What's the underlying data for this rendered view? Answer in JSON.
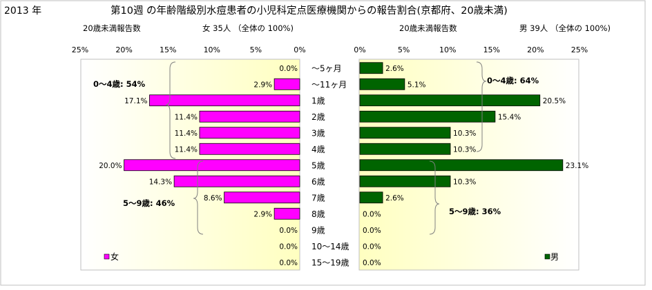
{
  "header": {
    "year": "2013 年",
    "title": "第10週 の年齢階級別水痘患者の小児科定点医療機関からの報告割合(京都府、20歳未満)"
  },
  "chart_data": [
    {
      "type": "bar",
      "orientation": "horizontal",
      "direction": "right-to-left",
      "subtitle_left": "20歳未満報告数",
      "subtitle_right": "女  35人 （全体の  100%)",
      "x_ticks": [
        "25%",
        "20%",
        "15%",
        "10%",
        "5%",
        "0%"
      ],
      "xlim": [
        0,
        25
      ],
      "legend": "女",
      "legend_position": "bottom-left",
      "color": "#ff00ff",
      "categories": [
        "～5ヶ月",
        "～11ヶ月",
        "1歳",
        "2歳",
        "3歳",
        "4歳",
        "5歳",
        "6歳",
        "7歳",
        "8歳",
        "9歳",
        "10～14歳",
        "15～19歳"
      ],
      "values": [
        0.0,
        2.9,
        17.1,
        11.4,
        11.4,
        11.4,
        20.0,
        14.3,
        8.6,
        2.9,
        0.0,
        0.0,
        0.0
      ],
      "labels": [
        "0.0%",
        "2.9%",
        "17.1%",
        "11.4%",
        "11.4%",
        "11.4%",
        "20.0%",
        "14.3%",
        "8.6%",
        "2.9%",
        "0.0%",
        "0.0%",
        "0.0%"
      ],
      "annotations": [
        "0～4歳: 54%",
        "5～9歳: 46%"
      ]
    },
    {
      "type": "bar",
      "orientation": "horizontal",
      "direction": "left-to-right",
      "subtitle_left": "20歳未満報告数",
      "subtitle_right": "男  39人 （全体の  100%)",
      "x_ticks": [
        "0%",
        "5%",
        "10%",
        "15%",
        "20%",
        "25%"
      ],
      "xlim": [
        0,
        25
      ],
      "legend": "男",
      "legend_position": "bottom-right",
      "color": "#006400",
      "categories": [
        "～5ヶ月",
        "～11ヶ月",
        "1歳",
        "2歳",
        "3歳",
        "4歳",
        "5歳",
        "6歳",
        "7歳",
        "8歳",
        "9歳",
        "10～14歳",
        "15～19歳"
      ],
      "values": [
        2.6,
        5.1,
        20.5,
        15.4,
        10.3,
        10.3,
        23.1,
        10.3,
        2.6,
        0.0,
        0.0,
        0.0,
        0.0
      ],
      "labels": [
        "2.6%",
        "5.1%",
        "20.5%",
        "15.4%",
        "10.3%",
        "10.3%",
        "23.1%",
        "10.3%",
        "2.6%",
        "0.0%",
        "0.0%",
        "0.0%",
        "0.0%"
      ],
      "annotations": [
        "0～4歳: 64%",
        "5～9歳: 36%"
      ]
    }
  ]
}
